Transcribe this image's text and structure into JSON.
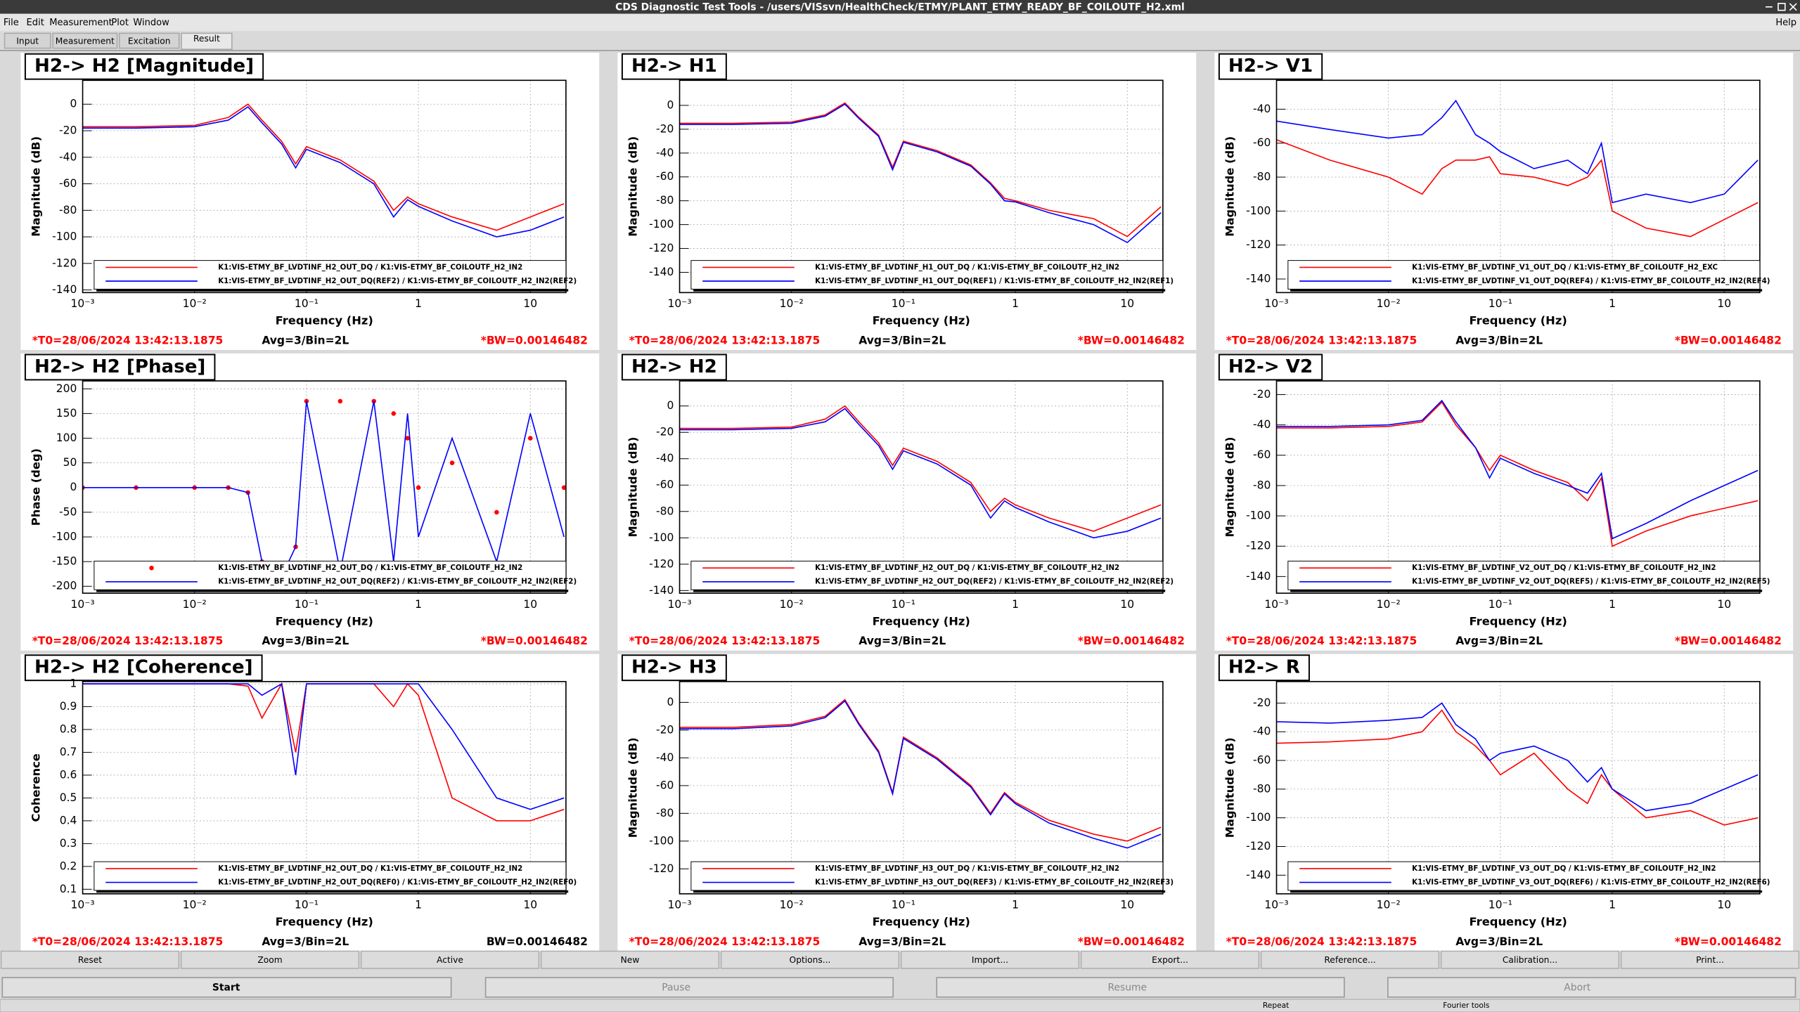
{
  "window": {
    "title": "CDS Diagnostic Test Tools - /users/VISsvn/HealthCheck/ETMY/PLANT_ETMY_READY_BF_COILOUTF_H2.xml"
  },
  "menu": [
    "File",
    "Edit",
    "Measurement",
    "Plot",
    "Window"
  ],
  "help": "Help",
  "tabs": [
    "Input",
    "Measurement",
    "Excitation",
    "Result"
  ],
  "common": {
    "xlabel": "Frequency (Hz)",
    "xscale": "log",
    "xlim": [
      0.001,
      20.8
    ],
    "xticks": [
      {
        "value": 0.001,
        "label": "10⁻³"
      },
      {
        "value": 0.01,
        "label": "10⁻²"
      },
      {
        "value": 0.1,
        "label": "10⁻¹"
      },
      1,
      10
    ],
    "x": [
      0.001,
      0.003,
      0.01,
      0.02,
      0.03,
      0.04,
      0.06,
      0.08,
      0.1,
      0.2,
      0.4,
      0.6,
      0.8,
      1,
      2,
      5,
      10,
      20
    ],
    "t0": "*T0=28/06/2024 13:42:13.1875",
    "avg": "Avg=3/Bin=2L",
    "grid": true
  },
  "panels": [
    {
      "title": "H2-> H2 [Magnitude]",
      "type": "line",
      "ylabel": "Magnitude (dB)",
      "ylim": [
        -142,
        18
      ],
      "yticks": [
        0,
        -20,
        -40,
        -60,
        -80,
        -100,
        -120,
        -140
      ],
      "bw": "*BW=0.00146482",
      "bw_color": "#ff0000",
      "series": [
        {
          "name": "K1:VIS-ETMY_BF_LVDTINF_H2_OUT_DQ / K1:VIS-ETMY_BF_COILOUTF_H2_IN2",
          "color": "#ff0000",
          "values": [
            -17,
            -17,
            -16,
            -10,
            0,
            -12,
            -28,
            -45,
            -32,
            -42,
            -58,
            -80,
            -70,
            -75,
            -85,
            -95,
            -85,
            -75
          ]
        },
        {
          "name": "K1:VIS-ETMY_BF_LVDTINF_H2_OUT_DQ(REF2) / K1:VIS-ETMY_BF_COILOUTF_H2_IN2(REF2)",
          "color": "#0000ff",
          "values": [
            -18,
            -18,
            -17,
            -12,
            -2,
            -14,
            -30,
            -48,
            -34,
            -44,
            -60,
            -85,
            -72,
            -77,
            -88,
            -100,
            -95,
            -85
          ]
        }
      ]
    },
    {
      "title": "H2-> H1",
      "type": "line",
      "ylabel": "Magnitude (dB)",
      "ylim": [
        -157,
        21
      ],
      "yticks": [
        0,
        -20,
        -40,
        -60,
        -80,
        -100,
        -120,
        -140
      ],
      "bw": "*BW=0.00146482",
      "bw_color": "#ff0000",
      "series": [
        {
          "name": "K1:VIS-ETMY_BF_LVDTINF_H1_OUT_DQ / K1:VIS-ETMY_BF_COILOUTF_H2_IN2",
          "color": "#ff0000",
          "values": [
            -15,
            -15,
            -14,
            -8,
            2,
            -10,
            -25,
            -52,
            -30,
            -38,
            -50,
            -65,
            -78,
            -80,
            -88,
            -95,
            -110,
            -85
          ]
        },
        {
          "name": "K1:VIS-ETMY_BF_LVDTINF_H1_OUT_DQ(REF1) / K1:VIS-ETMY_BF_COILOUTF_H2_IN2(REF1)",
          "color": "#0000ff",
          "values": [
            -16,
            -16,
            -15,
            -9,
            1,
            -11,
            -26,
            -54,
            -31,
            -39,
            -51,
            -66,
            -80,
            -81,
            -90,
            -100,
            -115,
            -90
          ]
        }
      ]
    },
    {
      "title": "H2-> V1",
      "type": "line",
      "ylabel": "Magnitude (dB)",
      "ylim": [
        -148,
        -23
      ],
      "yticks": [
        -40,
        -60,
        -80,
        -100,
        -120,
        -140
      ],
      "bw": "*BW=0.00146482",
      "bw_color": "#ff0000",
      "series": [
        {
          "name": "K1:VIS-ETMY_BF_LVDTINF_V1_OUT_DQ / K1:VIS-ETMY_BF_COILOUTF_H2_EXC",
          "color": "#ff0000",
          "values": [
            -58,
            -70,
            -80,
            -90,
            -75,
            -70,
            -70,
            -68,
            -78,
            -80,
            -85,
            -80,
            -70,
            -100,
            -110,
            -115,
            -105,
            -95
          ]
        },
        {
          "name": "K1:VIS-ETMY_BF_LVDTINF_V1_OUT_DQ(REF4) / K1:VIS-ETMY_BF_COILOUTF_H2_IN2(REF4)",
          "color": "#0000ff",
          "values": [
            -47,
            -52,
            -57,
            -55,
            -45,
            -35,
            -55,
            -60,
            -65,
            -75,
            -70,
            -78,
            -60,
            -95,
            -90,
            -95,
            -90,
            -70
          ]
        }
      ]
    },
    {
      "title": "H2-> H2 [Phase]",
      "type": "line",
      "ylabel": "Phase (deg)",
      "ylim": [
        -214,
        216
      ],
      "yticks": [
        200,
        150,
        100,
        50,
        0,
        -50,
        -100,
        -150,
        -200
      ],
      "bw": "*BW=0.00146482",
      "bw_color": "#ff0000",
      "series": [
        {
          "name": "K1:VIS-ETMY_BF_LVDTINF_H2_OUT_DQ / K1:VIS-ETMY_BF_COILOUTF_H2_IN2",
          "color": "#ff0000",
          "style": "markers",
          "values": [
            0,
            0,
            0,
            0,
            -10,
            -150,
            -180,
            -120,
            175,
            175,
            175,
            150,
            100,
            0,
            50,
            -50,
            100,
            0
          ]
        },
        {
          "name": "K1:VIS-ETMY_BF_LVDTINF_H2_OUT_DQ(REF2) / K1:VIS-ETMY_BF_COILOUTF_H2_IN2(REF2)",
          "color": "#0000ff",
          "values": [
            0,
            0,
            0,
            0,
            -10,
            -150,
            -180,
            -120,
            175,
            -170,
            175,
            -150,
            150,
            -100,
            100,
            -150,
            150,
            -100
          ]
        }
      ]
    },
    {
      "title": "H2-> H2",
      "type": "line",
      "ylabel": "Magnitude (dB)",
      "ylim": [
        -142,
        19
      ],
      "yticks": [
        0,
        -20,
        -40,
        -60,
        -80,
        -100,
        -120,
        -140
      ],
      "bw": "*BW=0.00146482",
      "bw_color": "#ff0000",
      "series": [
        {
          "name": "K1:VIS-ETMY_BF_LVDTINF_H2_OUT_DQ / K1:VIS-ETMY_BF_COILOUTF_H2_IN2",
          "color": "#ff0000",
          "values": [
            -17,
            -17,
            -16,
            -10,
            0,
            -12,
            -28,
            -45,
            -32,
            -42,
            -58,
            -80,
            -70,
            -75,
            -85,
            -95,
            -85,
            -75
          ]
        },
        {
          "name": "K1:VIS-ETMY_BF_LVDTINF_H2_OUT_DQ(REF2) / K1:VIS-ETMY_BF_COILOUTF_H2_IN2(REF2)",
          "color": "#0000ff",
          "values": [
            -18,
            -18,
            -17,
            -12,
            -2,
            -14,
            -30,
            -48,
            -34,
            -44,
            -60,
            -85,
            -72,
            -77,
            -88,
            -100,
            -95,
            -85
          ]
        }
      ]
    },
    {
      "title": "H2-> V2",
      "type": "line",
      "ylabel": "Magnitude (dB)",
      "ylim": [
        -151,
        -11
      ],
      "yticks": [
        -20,
        -40,
        -60,
        -80,
        -100,
        -120,
        -140
      ],
      "bw": "*BW=0.00146482",
      "bw_color": "#ff0000",
      "series": [
        {
          "name": "K1:VIS-ETMY_BF_LVDTINF_V2_OUT_DQ / K1:VIS-ETMY_BF_COILOUTF_H2_IN2",
          "color": "#ff0000",
          "values": [
            -42,
            -42,
            -41,
            -38,
            -25,
            -40,
            -55,
            -70,
            -60,
            -70,
            -78,
            -90,
            -75,
            -120,
            -110,
            -100,
            -95,
            -90
          ]
        },
        {
          "name": "K1:VIS-ETMY_BF_LVDTINF_V2_OUT_DQ(REF5) / K1:VIS-ETMY_BF_COILOUTF_H2_IN2(REF5)",
          "color": "#0000ff",
          "values": [
            -41,
            -41,
            -40,
            -37,
            -24,
            -38,
            -55,
            -75,
            -62,
            -72,
            -80,
            -85,
            -72,
            -115,
            -105,
            -90,
            -80,
            -70
          ]
        }
      ]
    },
    {
      "title": "H2-> H2 [Coherence]",
      "type": "line",
      "ylabel": "Coherence",
      "ylim": [
        0.08,
        1.01
      ],
      "yticks": [
        1,
        0.9,
        0.8,
        0.7,
        0.6,
        0.5,
        0.4,
        0.3,
        0.2,
        0.1
      ],
      "bw": "BW=0.00146482",
      "bw_color": "#000000",
      "series": [
        {
          "name": "K1:VIS-ETMY_BF_LVDTINF_H2_OUT_DQ / K1:VIS-ETMY_BF_COILOUTF_H2_IN2",
          "color": "#ff0000",
          "values": [
            1,
            1,
            1,
            1,
            0.99,
            0.85,
            1,
            0.7,
            1,
            1,
            1,
            0.9,
            1,
            0.95,
            0.5,
            0.4,
            0.4,
            0.45
          ]
        },
        {
          "name": "K1:VIS-ETMY_BF_LVDTINF_H2_OUT_DQ(REF0) / K1:VIS-ETMY_BF_COILOUTF_H2_IN2(REF0)",
          "color": "#0000ff",
          "values": [
            1,
            1,
            1,
            1,
            1,
            0.95,
            1,
            0.6,
            1,
            1,
            1,
            1,
            1,
            1,
            0.8,
            0.5,
            0.45,
            0.5
          ]
        }
      ]
    },
    {
      "title": "H2-> H3",
      "type": "line",
      "ylabel": "Magnitude (dB)",
      "ylim": [
        -138,
        15
      ],
      "yticks": [
        0,
        -20,
        -40,
        -60,
        -80,
        -100,
        -120
      ],
      "bw": "*BW=0.00146482",
      "bw_color": "#ff0000",
      "series": [
        {
          "name": "K1:VIS-ETMY_BF_LVDTINF_H3_OUT_DQ / K1:VIS-ETMY_BF_COILOUTF_H2_IN2",
          "color": "#ff0000",
          "values": [
            -18,
            -18,
            -16,
            -10,
            2,
            -15,
            -35,
            -65,
            -25,
            -40,
            -60,
            -80,
            -65,
            -72,
            -85,
            -95,
            -100,
            -90
          ]
        },
        {
          "name": "K1:VIS-ETMY_BF_LVDTINF_H3_OUT_DQ(REF3) / K1:VIS-ETMY_BF_COILOUTF_H2_IN2(REF3)",
          "color": "#0000ff",
          "values": [
            -19,
            -19,
            -17,
            -11,
            1,
            -16,
            -36,
            -66,
            -26,
            -41,
            -61,
            -81,
            -66,
            -73,
            -87,
            -98,
            -105,
            -95
          ]
        }
      ]
    },
    {
      "title": "H2-> R",
      "type": "line",
      "ylabel": "Magnitude (dB)",
      "ylim": [
        -153,
        -5
      ],
      "yticks": [
        -20,
        -40,
        -60,
        -80,
        -100,
        -120,
        -140
      ],
      "bw": "*BW=0.00146482",
      "bw_color": "#ff0000",
      "series": [
        {
          "name": "K1:VIS-ETMY_BF_LVDTINF_V3_OUT_DQ / K1:VIS-ETMY_BF_COILOUTF_H2_IN2",
          "color": "#ff0000",
          "values": [
            -48,
            -47,
            -45,
            -40,
            -25,
            -40,
            -50,
            -60,
            -70,
            -55,
            -80,
            -90,
            -70,
            -80,
            -100,
            -95,
            -105,
            -100
          ]
        },
        {
          "name": "K1:VIS-ETMY_BF_LVDTINF_V3_OUT_DQ(REF6) / K1:VIS-ETMY_BF_COILOUTF_H2_IN2(REF6)",
          "color": "#0000ff",
          "values": [
            -33,
            -34,
            -32,
            -30,
            -20,
            -35,
            -45,
            -60,
            -55,
            -50,
            -60,
            -75,
            -65,
            -80,
            -95,
            -90,
            -80,
            -70
          ]
        }
      ]
    }
  ],
  "buttons": [
    "Reset",
    "Zoom",
    "Active",
    "New",
    "Options...",
    "Import...",
    "Export...",
    "Reference...",
    "Calibration...",
    "Print..."
  ],
  "controls": [
    "Start",
    "Pause",
    "Resume",
    "Abort"
  ],
  "status": [
    "Repeat",
    "Fourier tools"
  ]
}
